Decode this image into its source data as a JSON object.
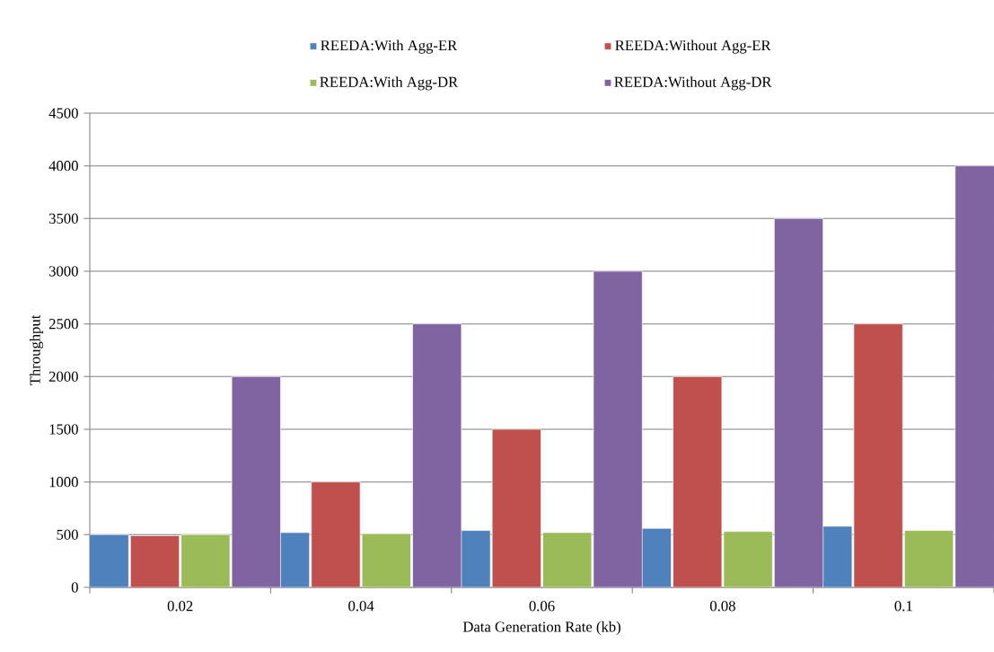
{
  "chart_data": {
    "type": "bar",
    "xlabel": "Data Generation Rate (kb)",
    "ylabel": "Throughput",
    "categories": [
      "0.02",
      "0.04",
      "0.06",
      "0.08",
      "0.1"
    ],
    "series": [
      {
        "name": "REEDA:With Agg-ER",
        "color": "#4f81bd",
        "values": [
          500,
          520,
          540,
          560,
          580
        ]
      },
      {
        "name": "REEDA:Without Agg-ER",
        "color": "#c0504d",
        "values": [
          490,
          1000,
          1500,
          2000,
          2500
        ]
      },
      {
        "name": "REEDA:With Agg-DR",
        "color": "#9bbb59",
        "values": [
          500,
          510,
          520,
          530,
          540
        ]
      },
      {
        "name": "REEDA:Without Agg-DR",
        "color": "#8064a2",
        "values": [
          2000,
          2500,
          3000,
          3500,
          4000
        ]
      }
    ],
    "ylim": [
      0,
      4500
    ],
    "yticks": [
      0,
      500,
      1000,
      1500,
      2000,
      2500,
      3000,
      3500,
      4000,
      4500
    ],
    "grid": "y",
    "legend": "top"
  }
}
